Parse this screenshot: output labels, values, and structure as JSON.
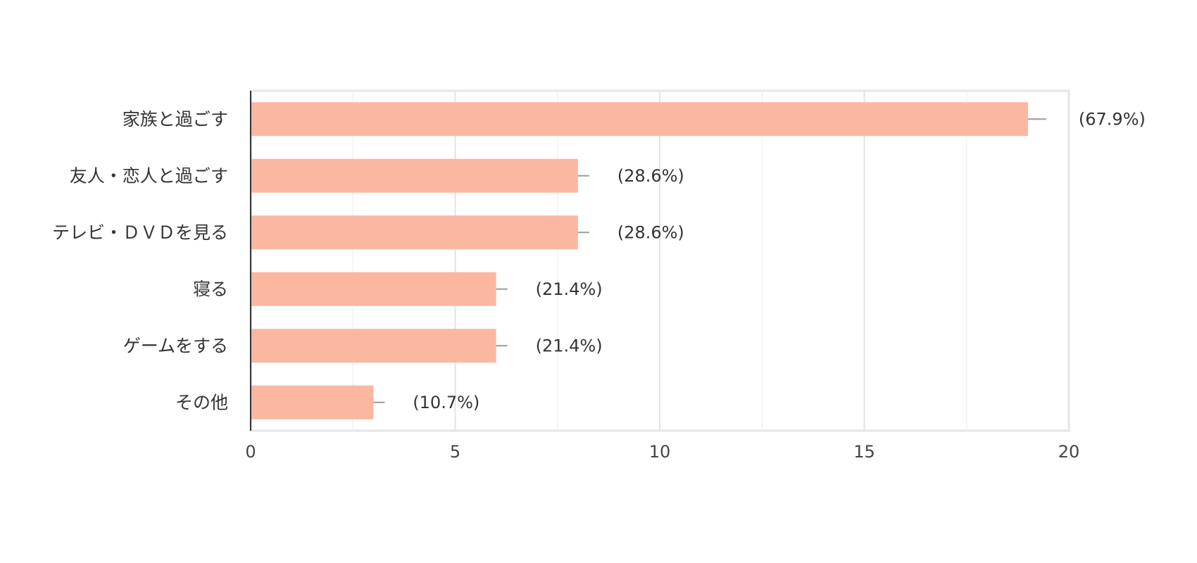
{
  "chart_data": {
    "type": "bar",
    "orientation": "horizontal",
    "categories": [
      "家族と過ごす",
      "友人・恋人と過ごす",
      "テレビ・ＤＶＤを見る",
      "寝る",
      "ゲームをする",
      "その他"
    ],
    "values": [
      19,
      8,
      8,
      6,
      6,
      3
    ],
    "data_labels": [
      "(67.9%)",
      "(28.6%)",
      "(28.6%)",
      "(21.4%)",
      "(21.4%)",
      "(10.7%)"
    ],
    "xlim": [
      0,
      20
    ],
    "xticks": [
      0,
      5,
      10,
      15,
      20
    ],
    "title": "",
    "xlabel": "",
    "ylabel": "",
    "grid": true,
    "bar_color": "#fbb7a0"
  }
}
